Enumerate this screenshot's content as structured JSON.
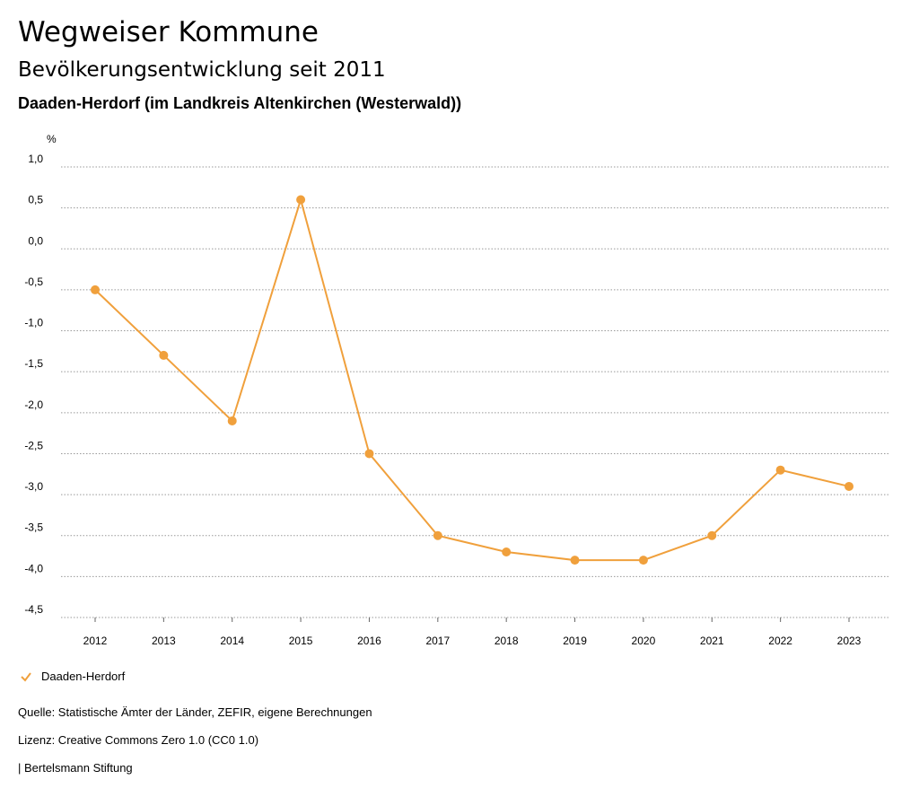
{
  "header": {
    "title": "Wegweiser Kommune",
    "subtitle": "Bevölkerungsentwicklung seit 2011",
    "region": "Daaden-Herdorf (im Landkreis Altenkirchen (Westerwald))"
  },
  "chart_data": {
    "type": "line",
    "ylabel": "%",
    "ylim": [
      -4.5,
      1.0
    ],
    "yticks": [
      1.0,
      0.5,
      0.0,
      -0.5,
      -1.0,
      -1.5,
      -2.0,
      -2.5,
      -3.0,
      -3.5,
      -4.0,
      -4.5
    ],
    "ytick_labels": [
      "1,0",
      "0,5",
      "0,0",
      "-0,5",
      "-1,0",
      "-1,5",
      "-2,0",
      "-2,5",
      "-3,0",
      "-3,5",
      "-4,0",
      "-4,5"
    ],
    "categories": [
      "2012",
      "2013",
      "2014",
      "2015",
      "2016",
      "2017",
      "2018",
      "2019",
      "2020",
      "2021",
      "2022",
      "2023"
    ],
    "series": [
      {
        "name": "Daaden-Herdorf",
        "color": "#f0a03c",
        "values": [
          -0.5,
          -1.3,
          -2.1,
          0.6,
          -2.5,
          -3.5,
          -3.7,
          -3.8,
          -3.8,
          -3.5,
          -2.7,
          -2.9
        ]
      }
    ],
    "grid": true,
    "legend": "bottom-left"
  },
  "footer": {
    "source": "Quelle: Statistische Ämter der Länder, ZEFIR, eigene Berechnungen",
    "license": "Lizenz: Creative Commons Zero 1.0 (CC0 1.0)",
    "publisher": "| Bertelsmann Stiftung"
  }
}
